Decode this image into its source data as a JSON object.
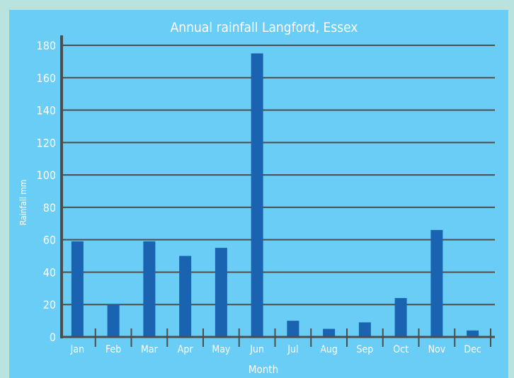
{
  "chart_data": {
    "type": "bar",
    "title": "Annual rainfall Langford, Essex",
    "xlabel": "Month",
    "ylabel": "Rainfall mm",
    "categories": [
      "Jan",
      "Feb",
      "Mar",
      "Apr",
      "May",
      "Jun",
      "Jul",
      "Aug",
      "Sep",
      "Oct",
      "Nov",
      "Dec"
    ],
    "series": [
      {
        "values": [
          59,
          20,
          59,
          50,
          55,
          175,
          10,
          5,
          9,
          24,
          66,
          4
        ]
      }
    ],
    "ylim": [
      0,
      180
    ],
    "yticks": [
      0,
      20,
      40,
      60,
      80,
      100,
      120,
      140,
      160,
      180
    ],
    "grid": true,
    "colors": {
      "background": "#69cdf5",
      "outer": "#b9e3df",
      "bar": "#1a63b0",
      "grid": "#4d4d4d",
      "text": "#ffffff"
    }
  }
}
